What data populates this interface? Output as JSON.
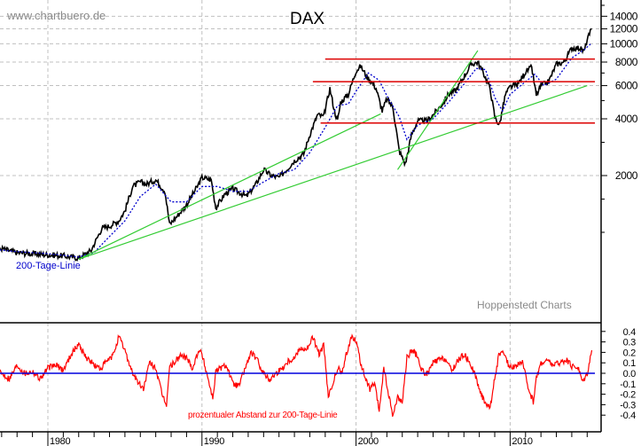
{
  "watermark_left": "www.chartbuero.de",
  "watermark_right": "Hoppenstedt Charts",
  "chart_data": [
    {
      "type": "line",
      "title": "DAX",
      "xlabel": "",
      "ylabel": "",
      "yscale": "log",
      "ylim": [
        700,
        16000
      ],
      "xlim": [
        1970.0,
        2015.5
      ],
      "grid": true,
      "y_ticks": [
        2000,
        4000,
        6000,
        8000,
        10000,
        12000,
        14000
      ],
      "y_tick_labels": [
        "2000",
        "4000",
        "6000",
        "8000",
        "10000",
        "12000",
        "14000"
      ],
      "x_ticks": [
        1980,
        1990,
        2000,
        2010
      ],
      "x_tick_labels": [
        "1980",
        "1990",
        "2000",
        "2010"
      ],
      "legend_annotation": "200-Tage-Linie",
      "series": [
        {
          "name": "DAX",
          "color": "#000000",
          "x": [
            1970.0,
            1971.0,
            1972.0,
            1973.0,
            1974.0,
            1975.0,
            1976.0,
            1977.0,
            1978.0,
            1979.0,
            1980.0,
            1981.0,
            1982.0,
            1982.8,
            1983.5,
            1984.0,
            1984.6,
            1985.0,
            1985.5,
            1986.0,
            1986.4,
            1987.0,
            1987.6,
            1987.9,
            1988.5,
            1989.0,
            1989.7,
            1990.0,
            1990.6,
            1990.9,
            1991.5,
            1992.0,
            1992.6,
            1992.9,
            1993.5,
            1994.0,
            1994.5,
            1995.0,
            1995.6,
            1996.0,
            1996.6,
            1997.0,
            1997.5,
            1997.9,
            1998.3,
            1998.6,
            1998.8,
            1999.0,
            1999.5,
            2000.0,
            2000.3,
            2000.7,
            2001.0,
            2001.3,
            2001.7,
            2002.0,
            2002.4,
            2002.8,
            2003.2,
            2003.6,
            2004.0,
            2004.6,
            2005.0,
            2005.6,
            2006.0,
            2006.5,
            2007.0,
            2007.5,
            2007.9,
            2008.3,
            2008.7,
            2009.0,
            2009.3,
            2009.7,
            2010.0,
            2010.5,
            2011.0,
            2011.4,
            2011.7,
            2012.0,
            2012.5,
            2013.0,
            2013.5,
            2014.0,
            2014.5,
            2014.8,
            2015.0,
            2015.3
          ],
          "values": [
            780,
            800,
            820,
            860,
            760,
            830,
            790,
            820,
            780,
            770,
            760,
            750,
            730,
            800,
            1050,
            1080,
            1150,
            1300,
            1750,
            1850,
            1800,
            1900,
            1650,
            1100,
            1250,
            1400,
            1750,
            1950,
            1900,
            1350,
            1600,
            1700,
            1600,
            1550,
            1800,
            2150,
            2000,
            1950,
            2200,
            2400,
            2600,
            3300,
            4200,
            4100,
            5800,
            4400,
            3900,
            4900,
            5400,
            7200,
            7600,
            6700,
            6300,
            5800,
            4400,
            5100,
            4600,
            2700,
            2300,
            3300,
            3900,
            3900,
            4200,
            4800,
            5400,
            5700,
            6700,
            7800,
            8000,
            6900,
            5800,
            4100,
            3700,
            5400,
            5900,
            6100,
            7100,
            7500,
            5300,
            6000,
            6300,
            7800,
            8000,
            9500,
            9500,
            9100,
            10500,
            12000
          ]
        },
        {
          "name": "200-Tage-Linie",
          "color": "#0000cc",
          "style": "dotted",
          "x": [
            1970.0,
            1972.0,
            1974.0,
            1976.0,
            1978.0,
            1980.0,
            1982.0,
            1983.0,
            1984.0,
            1985.0,
            1986.0,
            1987.0,
            1988.0,
            1989.0,
            1990.0,
            1991.0,
            1992.0,
            1993.0,
            1994.0,
            1995.0,
            1996.0,
            1997.0,
            1998.0,
            1998.8,
            1999.5,
            2000.0,
            2000.8,
            2001.5,
            2002.0,
            2002.8,
            2003.3,
            2004.0,
            2005.0,
            2006.0,
            2007.0,
            2007.8,
            2008.4,
            2009.0,
            2009.5,
            2010.0,
            2011.0,
            2011.6,
            2012.2,
            2013.0,
            2014.0,
            2014.8,
            2015.3
          ],
          "values": [
            770,
            800,
            790,
            820,
            790,
            770,
            740,
            780,
            950,
            1150,
            1550,
            1800,
            1450,
            1450,
            1750,
            1750,
            1650,
            1650,
            1850,
            2050,
            2150,
            2650,
            3600,
            4700,
            4800,
            5600,
            7000,
            6400,
            5300,
            4100,
            3100,
            3700,
            4000,
            4900,
            6100,
            7400,
            7300,
            5200,
            4400,
            5400,
            6300,
            6900,
            6000,
            6500,
            8400,
            9300,
            10100
          ]
        },
        {
          "name": "Trendlinie 1",
          "color": "#33cc33",
          "x": [
            1982.0,
            2001.6
          ],
          "values": [
            720,
            4250
          ]
        },
        {
          "name": "Trendlinie 2",
          "color": "#33cc33",
          "x": [
            1982.0,
            2015.0
          ],
          "values": [
            720,
            6000
          ]
        },
        {
          "name": "Trendlinie 3",
          "color": "#33cc33",
          "x": [
            2002.7,
            2007.9
          ],
          "values": [
            2150,
            9200
          ]
        },
        {
          "name": "Widerstand 8000",
          "color": "#dd0000",
          "x": [
            1998.0,
            2015.5
          ],
          "values": [
            8300,
            8300
          ]
        },
        {
          "name": "Widerstand 6000",
          "color": "#dd0000",
          "x": [
            1997.2,
            2015.5
          ],
          "values": [
            6300,
            6300
          ]
        },
        {
          "name": "Unterstuetzung 4000",
          "color": "#dd0000",
          "x": [
            1997.7,
            2015.5
          ],
          "values": [
            3800,
            3800
          ]
        }
      ]
    },
    {
      "type": "line",
      "title": "",
      "annotation": "prozentualer Abstand zur 200-Tage-Linie",
      "ylim": [
        -0.5,
        0.45
      ],
      "y_ticks": [
        0.4,
        0.3,
        0.2,
        0.1,
        0.0,
        -0.1,
        -0.2,
        -0.3,
        -0.4
      ],
      "y_tick_labels": [
        "0.4",
        "0.3",
        "0.2",
        "0.1",
        "0.0",
        "-0.1",
        "-0.2",
        "-0.3",
        "-0.4"
      ],
      "series": [
        {
          "name": "Abstand zur 200-Tage-Linie",
          "color": "#ff0000",
          "x": [
            1970.0,
            1970.5,
            1971.0,
            1971.5,
            1972.0,
            1972.5,
            1973.0,
            1973.5,
            1974.0,
            1974.5,
            1975.0,
            1975.5,
            1976.0,
            1976.5,
            1977.0,
            1977.5,
            1978.0,
            1978.5,
            1979.0,
            1979.5,
            1980.0,
            1980.5,
            1981.0,
            1981.5,
            1982.0,
            1982.5,
            1983.0,
            1983.4,
            1983.8,
            1984.2,
            1984.6,
            1985.0,
            1985.4,
            1985.8,
            1986.2,
            1986.6,
            1987.0,
            1987.4,
            1987.7,
            1987.9,
            1988.2,
            1988.6,
            1989.0,
            1989.4,
            1989.8,
            1990.0,
            1990.4,
            1990.7,
            1990.9,
            1991.2,
            1991.6,
            1992.0,
            1992.4,
            1992.8,
            1993.2,
            1993.6,
            1994.0,
            1994.4,
            1994.8,
            1995.2,
            1995.6,
            1996.0,
            1996.4,
            1996.8,
            1997.2,
            1997.6,
            1997.9,
            1998.2,
            1998.5,
            1998.8,
            1999.1,
            1999.4,
            1999.7,
            2000.0,
            2000.3,
            2000.6,
            2000.9,
            2001.2,
            2001.5,
            2001.8,
            2002.1,
            2002.4,
            2002.7,
            2003.0,
            2003.3,
            2003.6,
            2003.9,
            2004.2,
            2004.6,
            2005.0,
            2005.4,
            2005.8,
            2006.2,
            2006.6,
            2007.0,
            2007.4,
            2007.8,
            2008.1,
            2008.4,
            2008.7,
            2009.0,
            2009.3,
            2009.6,
            2010.0,
            2010.4,
            2010.8,
            2011.2,
            2011.5,
            2011.7,
            2012.0,
            2012.4,
            2012.8,
            2013.2,
            2013.6,
            2014.0,
            2014.4,
            2014.7,
            2015.0,
            2015.2,
            2015.3
          ],
          "values": [
            0.0,
            -0.03,
            0.06,
            0.03,
            0.05,
            0.01,
            0.07,
            0.0,
            -0.03,
            -0.1,
            -0.06,
            -0.08,
            -0.02,
            0.02,
            0.0,
            -0.05,
            0.08,
            0.0,
            0.02,
            -0.05,
            0.05,
            0.08,
            0.03,
            0.18,
            0.28,
            0.15,
            0.08,
            0.04,
            0.11,
            0.16,
            0.35,
            0.22,
            0.04,
            -0.08,
            -0.15,
            0.1,
            0.05,
            -0.2,
            -0.3,
            0.06,
            0.1,
            0.17,
            0.15,
            0.05,
            0.23,
            0.18,
            -0.05,
            -0.24,
            0.02,
            0.05,
            0.08,
            -0.1,
            -0.12,
            0.05,
            0.2,
            0.12,
            0.0,
            -0.06,
            0.0,
            0.05,
            0.12,
            0.15,
            0.25,
            0.22,
            0.35,
            0.18,
            0.27,
            -0.23,
            -0.1,
            0.05,
            0.0,
            0.2,
            0.35,
            0.32,
            0.1,
            -0.05,
            -0.15,
            -0.1,
            -0.36,
            0.05,
            -0.2,
            -0.41,
            -0.22,
            -0.28,
            0.15,
            0.22,
            0.18,
            0.05,
            -0.02,
            0.1,
            0.13,
            0.14,
            0.02,
            0.12,
            0.18,
            0.1,
            -0.05,
            -0.2,
            -0.28,
            -0.33,
            -0.05,
            0.2,
            0.18,
            0.05,
            0.08,
            0.1,
            -0.15,
            -0.27,
            -0.05,
            0.1,
            0.12,
            0.08,
            0.1,
            0.13,
            0.07,
            0.06,
            -0.08,
            0.0,
            0.15,
            0.22
          ]
        },
        {
          "name": "Nulllinie",
          "color": "#0000dd",
          "x": [
            1970.0,
            2015.5
          ],
          "values": [
            0.0,
            0.0
          ]
        }
      ]
    }
  ]
}
